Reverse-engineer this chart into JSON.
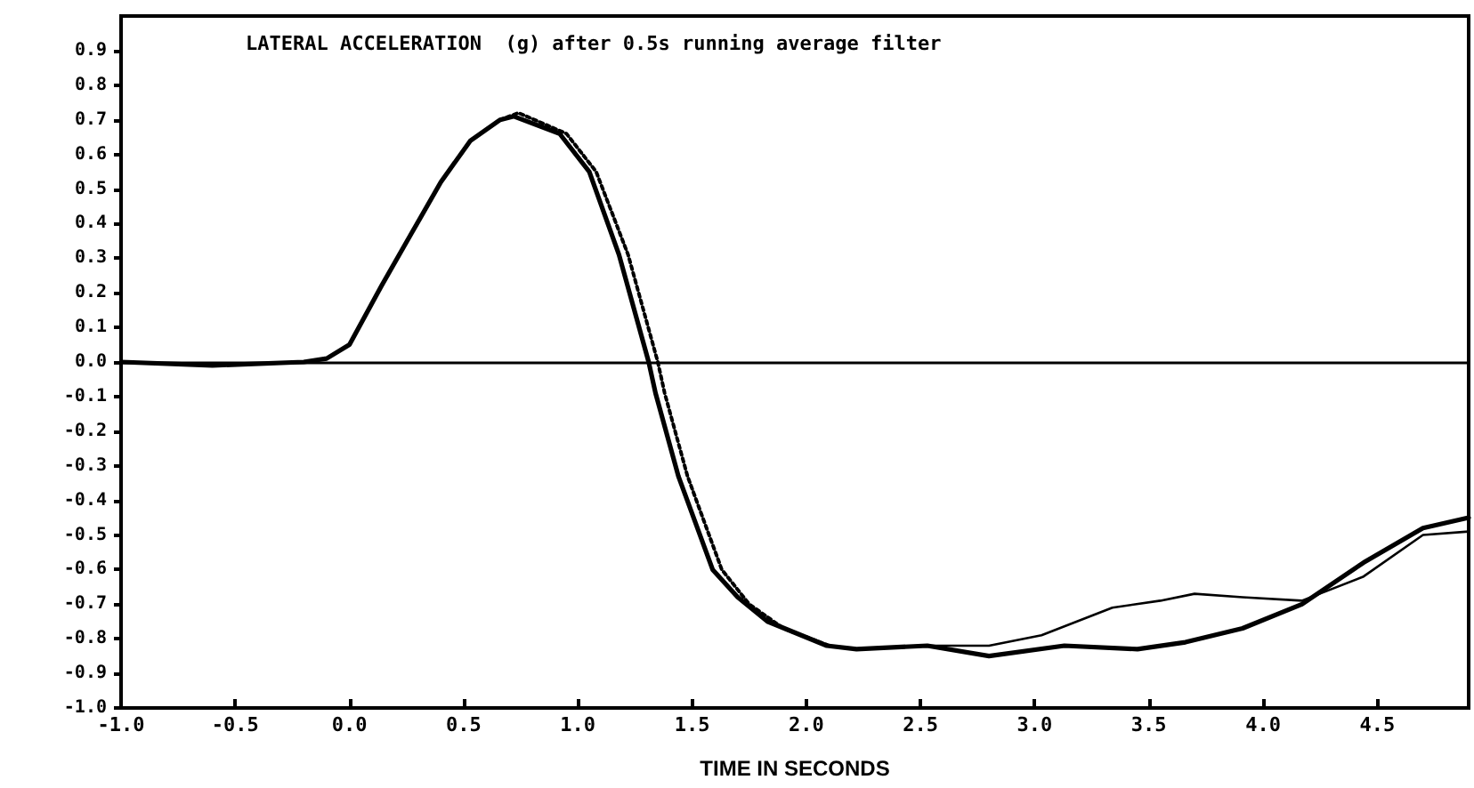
{
  "chart_data": {
    "type": "line",
    "title": "LATERAL ACCELERATION  (g) after 0.5s running average filter",
    "xlabel": "TIME IN SECONDS",
    "xlim": [
      -1.0,
      4.9
    ],
    "ylim": [
      -1.0,
      1.0
    ],
    "xticks": [
      {
        "value": -1,
        "label": "-1.0"
      },
      {
        "value": -0.5,
        "label": "-0.5"
      },
      {
        "value": 0,
        "label": "0.0"
      },
      {
        "value": 0.5,
        "label": "0.5"
      },
      {
        "value": 1,
        "label": "1.0"
      },
      {
        "value": 1.5,
        "label": "1.5"
      },
      {
        "value": 2,
        "label": "2.0"
      },
      {
        "value": 2.5,
        "label": "2.5"
      },
      {
        "value": 3,
        "label": "3.0"
      },
      {
        "value": 3.5,
        "label": "3.5"
      },
      {
        "value": 4,
        "label": "4.0"
      },
      {
        "value": 4.5,
        "label": "4.5"
      }
    ],
    "yticks": [
      {
        "value": -1,
        "label": "-1.0"
      },
      {
        "value": -0.9,
        "label": "-0.9"
      },
      {
        "value": -0.8,
        "label": "-0.8"
      },
      {
        "value": -0.7,
        "label": "-0.7"
      },
      {
        "value": -0.6,
        "label": "-0.6"
      },
      {
        "value": -0.5,
        "label": "-0.5"
      },
      {
        "value": -0.4,
        "label": "-0.4"
      },
      {
        "value": -0.3,
        "label": "-0.3"
      },
      {
        "value": -0.2,
        "label": "-0.2"
      },
      {
        "value": -0.1,
        "label": "-0.1"
      },
      {
        "value": 0,
        "label": "0.0"
      },
      {
        "value": 0.1,
        "label": "0.1"
      },
      {
        "value": 0.2,
        "label": "0.2"
      },
      {
        "value": 0.3,
        "label": "0.3"
      },
      {
        "value": 0.4,
        "label": "0.4"
      },
      {
        "value": 0.5,
        "label": "0.5"
      },
      {
        "value": 0.6,
        "label": "0.6"
      },
      {
        "value": 0.7,
        "label": "0.7"
      },
      {
        "value": 0.8,
        "label": "0.8"
      },
      {
        "value": 0.9,
        "label": "0.9"
      }
    ],
    "grid": false,
    "legend": false,
    "marker": "none",
    "ref_lines": [
      {
        "axis": "y",
        "value": 0,
        "color": "#000000",
        "line_style": "solid"
      }
    ],
    "series": [
      {
        "color": "#000000",
        "line_style": "solid",
        "x": [
          -1.0,
          -0.6,
          -0.2,
          -0.1,
          0.0,
          0.14,
          0.27,
          0.4,
          0.53,
          0.66,
          0.72,
          0.92,
          1.05,
          1.18,
          1.31,
          1.34,
          1.44,
          1.59,
          1.7,
          1.83,
          2.09,
          2.22,
          2.53,
          2.8,
          3.13,
          3.45,
          3.66,
          3.91,
          4.17,
          4.44,
          4.7,
          4.9
        ],
        "values": [
          0,
          -0.01,
          0,
          0.01,
          0.05,
          0.22,
          0.37,
          0.52,
          0.64,
          0.7,
          0.71,
          0.66,
          0.55,
          0.31,
          0,
          -0.09,
          -0.33,
          -0.6,
          -0.68,
          -0.75,
          -0.82,
          -0.83,
          -0.82,
          -0.85,
          -0.82,
          -0.83,
          -0.81,
          -0.77,
          -0.7,
          -0.58,
          -0.48,
          -0.45
        ]
      },
      {
        "color": "#000000",
        "line_style": "solid",
        "x": [
          -1.0,
          -0.6,
          -0.2,
          -0.1,
          0.0,
          0.14,
          0.27,
          0.4,
          0.53,
          0.66,
          0.72,
          0.92,
          1.05,
          1.18,
          1.31,
          1.34,
          1.44,
          1.59,
          1.7,
          1.83,
          2.09,
          2.22,
          2.53,
          2.8,
          3.03,
          3.34,
          3.55,
          3.7,
          3.91,
          4.17,
          4.44,
          4.7,
          4.9
        ],
        "values": [
          0,
          -0.01,
          0,
          0.01,
          0.05,
          0.22,
          0.37,
          0.52,
          0.64,
          0.7,
          0.71,
          0.66,
          0.55,
          0.31,
          0,
          -0.09,
          -0.33,
          -0.6,
          -0.68,
          -0.75,
          -0.82,
          -0.83,
          -0.82,
          -0.82,
          -0.79,
          -0.71,
          -0.69,
          -0.67,
          -0.68,
          -0.69,
          -0.62,
          -0.5,
          -0.49
        ]
      },
      {
        "color": "#000000",
        "line_style": "dotted",
        "x": [
          0.66,
          0.74,
          0.95,
          1.08,
          1.22,
          1.35,
          1.38,
          1.48,
          1.63,
          1.75,
          1.9,
          2.1
        ],
        "values": [
          0.7,
          0.72,
          0.66,
          0.55,
          0.31,
          0,
          -0.09,
          -0.33,
          -0.6,
          -0.7,
          -0.77,
          -0.82
        ]
      }
    ]
  }
}
